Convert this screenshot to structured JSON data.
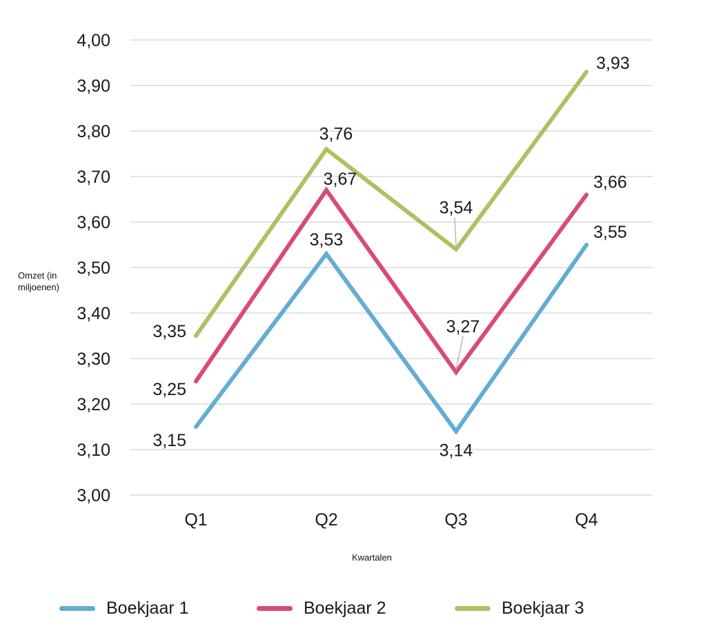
{
  "chart_data": {
    "type": "line",
    "title": "",
    "xlabel": "Kwartalen",
    "ylabel_lines": [
      "Omzet (in",
      "miljoenen)"
    ],
    "ylabel": "Omzet (in miljoenen)",
    "categories": [
      "Q1",
      "Q2",
      "Q3",
      "Q4"
    ],
    "ylim": [
      3.0,
      4.0
    ],
    "yticks": [
      3.0,
      3.1,
      3.2,
      3.3,
      3.4,
      3.5,
      3.6,
      3.7,
      3.8,
      3.9,
      4.0
    ],
    "ytick_labels": [
      "3,00",
      "3,10",
      "3,20",
      "3,30",
      "3,40",
      "3,50",
      "3,60",
      "3,70",
      "3,80",
      "3,90",
      "4,00"
    ],
    "grid": true,
    "legend_position": "bottom",
    "series": [
      {
        "name": "Boekjaar 1",
        "color": "#64acd3",
        "values": [
          3.15,
          3.53,
          3.14,
          3.55
        ],
        "labels": [
          "3,15",
          "3,53",
          "3,14",
          "3,55"
        ]
      },
      {
        "name": "Boekjaar 2",
        "color": "#d84b74",
        "values": [
          3.25,
          3.67,
          3.27,
          3.66
        ],
        "labels": [
          "3,25",
          "3,67",
          "3,27",
          "3,66"
        ]
      },
      {
        "name": "Boekjaar 3",
        "color": "#adc163",
        "values": [
          3.35,
          3.76,
          3.54,
          3.93
        ],
        "labels": [
          "3,35",
          "3,76",
          "3,54",
          "3,93"
        ]
      }
    ]
  }
}
